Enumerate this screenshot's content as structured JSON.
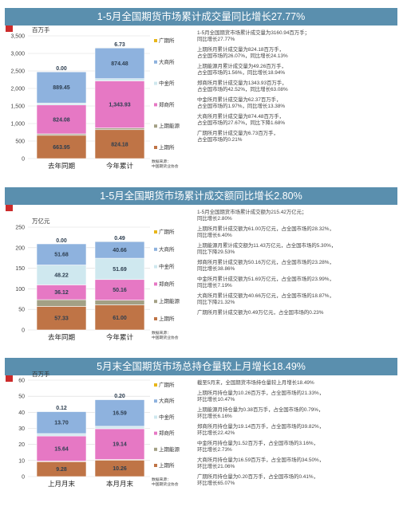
{
  "colors": {
    "header": "#5a8fae",
    "flag": "#cc2b2b",
    "series": {
      "广期所": "#e8b61a",
      "大商所": "#8eb2de",
      "中金所": "#cfe8ef",
      "郑商所": "#e678c4",
      "上期能源": "#a3a085",
      "上期所": "#bf7446"
    }
  },
  "legend_order": [
    "广期所",
    "大商所",
    "中金所",
    "郑商所",
    "上期能源",
    "上期所"
  ],
  "chart_data": [
    {
      "type": "bar",
      "stacked": true,
      "title": "1-5月全国期货市场累计成交量同比增长27.77%",
      "unit_label": "百万手",
      "categories": [
        "去年同期",
        "今年累计"
      ],
      "ylim": [
        0,
        3500
      ],
      "yticks": [
        "0",
        "500",
        "1,000",
        "1,500",
        "2,000",
        "2,500",
        "3,000",
        "3,500"
      ],
      "series": [
        {
          "name": "上期所",
          "values": [
            663.95,
            824.18
          ],
          "labels": [
            "663.95",
            "824.18"
          ]
        },
        {
          "name": "上期能源",
          "values": [
            41.42,
            49.26
          ],
          "labels": [
            "41.42",
            "49.26"
          ]
        },
        {
          "name": "郑商所",
          "values": [
            824.08,
            1343.93
          ],
          "labels": [
            "824.08",
            "1,343.93"
          ]
        },
        {
          "name": "中金所",
          "values": [
            55.01,
            62.37
          ],
          "labels": [
            "55.01",
            "62.37"
          ]
        },
        {
          "name": "大商所",
          "values": [
            889.45,
            874.48
          ],
          "labels": [
            "889.45",
            "874.48"
          ]
        },
        {
          "name": "广期所",
          "values": [
            0.0,
            6.73
          ],
          "labels": [
            "0.00",
            "6.73"
          ]
        }
      ],
      "source": "数据来源：\n中国期货业协会",
      "notes": [
        "1-5月全国期货市场累计成交量为3160.94百万手；\n同比增长27.77%",
        "上期所月累计成交量为824.18百万手，\n占全国市场的26.07%，同比增长24.13%",
        "上期能源月累计成交量为49.26百万手，\n占全国市场的1.56%，同比增长18.94%",
        "郑商所月累计成交量为1343.93百万手，\n占全国市场的42.52%，同比增长63.08%",
        "中金所月累计成交量为62.37百万手，\n占全国市场的1.97%，同比增长13.38%",
        "大商所月累计成交量为874.48百万手，\n占全国市场的27.67%，同比下降1.68%",
        "广期所月累计成交量为6.73百万手，\n占全国市场的0.21%"
      ]
    },
    {
      "type": "bar",
      "stacked": true,
      "title": "1-5月全国期货市场累计成交额同比增长2.80%",
      "unit_label": "万亿元",
      "categories": [
        "去年同期",
        "今年累计"
      ],
      "ylim": [
        0,
        250
      ],
      "yticks": [
        "0",
        "50",
        "100",
        "150",
        "200",
        "250"
      ],
      "series": [
        {
          "name": "上期所",
          "values": [
            57.33,
            61.0
          ],
          "labels": [
            "57.33",
            "61.00"
          ]
        },
        {
          "name": "上期能源",
          "values": [
            16.21,
            11.43
          ],
          "labels": [
            "16.21",
            "11.43"
          ]
        },
        {
          "name": "郑商所",
          "values": [
            36.12,
            50.16
          ],
          "labels": [
            "36.12",
            "50.16"
          ]
        },
        {
          "name": "中金所",
          "values": [
            48.22,
            51.69
          ],
          "labels": [
            "48.22",
            "51.69"
          ]
        },
        {
          "name": "大商所",
          "values": [
            51.68,
            40.66
          ],
          "labels": [
            "51.68",
            "40.66"
          ]
        },
        {
          "name": "广期所",
          "values": [
            0.0,
            0.49
          ],
          "labels": [
            "0.00",
            "0.49"
          ]
        }
      ],
      "source": "数据来源：\n中国期货业协会",
      "notes": [
        "1-5月全国期货市场累计成交额为215.42万亿元；\n同比增长2.80%",
        "上期所月累计成交额为61.00万亿元，占全国市场的28.32%，\n同比增长6.40%",
        "上期能源月累计成交额为11.43万亿元，占全国市场的5.30%，\n同比下降29.53%",
        "郑商所月累计成交额为50.16万亿元，占全国市场的23.28%，\n同比增长38.86%",
        "中金所月累计成交额为51.69万亿元，占全国市场的23.99%，\n同比增长7.19%",
        "大商所月累计成交额为40.66万亿元，占全国市场的18.87%，\n同比下降21.32%",
        "广期所月累计成交额为0.49万亿元，占全国市场的0.23%"
      ]
    },
    {
      "type": "bar",
      "stacked": true,
      "title": "5月末全国期货市场总持仓量较上月增长18.49%",
      "unit_label": "百万手",
      "categories": [
        "上月月末",
        "本月月末"
      ],
      "ylim": [
        0,
        60
      ],
      "yticks": [
        "0",
        "10",
        "20",
        "30",
        "40",
        "50",
        "60"
      ],
      "series": [
        {
          "name": "上期所",
          "values": [
            9.28,
            10.26
          ],
          "labels": [
            "9.28",
            "10.26"
          ]
        },
        {
          "name": "上期能源",
          "values": [
            0.36,
            0.38
          ],
          "labels": [
            "0.36",
            "0.38"
          ]
        },
        {
          "name": "郑商所",
          "values": [
            15.64,
            19.14
          ],
          "labels": [
            "15.64",
            "19.14"
          ]
        },
        {
          "name": "中金所",
          "values": [
            1.48,
            1.52
          ],
          "labels": [
            "1.48",
            "1.52"
          ]
        },
        {
          "name": "大商所",
          "values": [
            13.7,
            16.59
          ],
          "labels": [
            "13.70",
            "16.59"
          ]
        },
        {
          "name": "广期所",
          "values": [
            0.12,
            0.2
          ],
          "labels": [
            "0.12",
            "0.20"
          ]
        }
      ],
      "source": "数据来源：\n中国期货业协会",
      "notes": [
        "截至5月末，全国期货市场持仓量较上月增长18.49%",
        "上期所月持仓量为10.26百万手，占全国市场的21.33%，\n环比增长10.47%",
        "上期能源月持仓量为0.38百万手，占全国市场的0.79%，\n环比增长6.16%",
        "郑商所月持仓量为19.14百万手，占全国市场的39.82%，\n环比增长22.42%",
        "中金所月持仓量为1.52百万手，占全国市场的3.16%，\n环比增长2.73%",
        "大商所月持仓量为16.59百万手，占全国市场的34.50%，\n环比增长21.06%",
        "广期所月持仓量为0.20百万手，占全国市场的0.41%，\n环比增长65.07%"
      ]
    }
  ]
}
